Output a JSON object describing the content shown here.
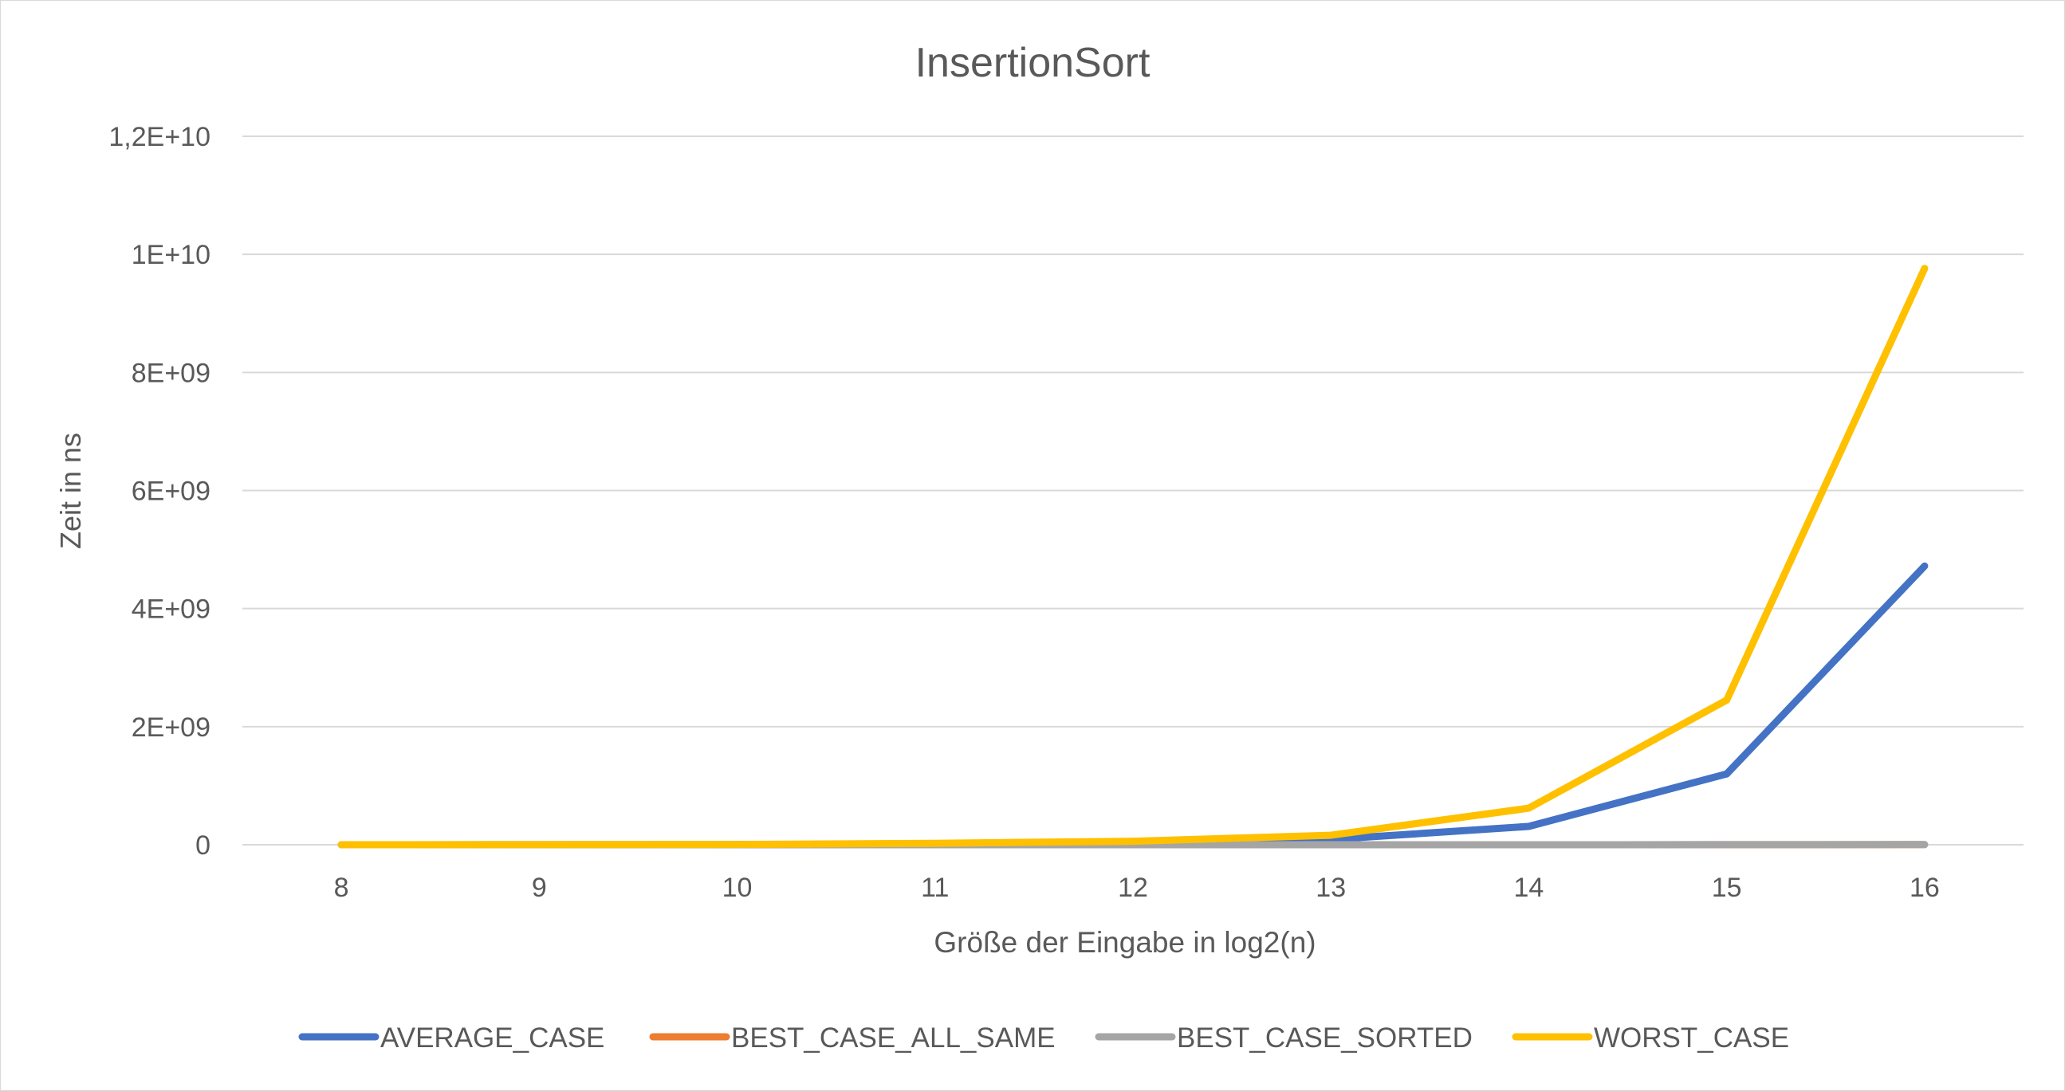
{
  "chart_data": {
    "type": "line",
    "title": "InsertionSort",
    "xlabel": "Größe der Eingabe in log2(n)",
    "ylabel": "Zeit in ns",
    "x": [
      8,
      9,
      10,
      11,
      12,
      13,
      14,
      15,
      16
    ],
    "x_tick_labels": [
      "8",
      "9",
      "10",
      "11",
      "12",
      "13",
      "14",
      "15",
      "16"
    ],
    "ylim": [
      0,
      12000000000
    ],
    "y_ticks": [
      0,
      2000000000,
      4000000000,
      6000000000,
      8000000000,
      10000000000,
      12000000000
    ],
    "y_tick_labels": [
      "0",
      "2E+09",
      "4E+09",
      "6E+09",
      "8E+09",
      "1E+10",
      "1,2E+10"
    ],
    "grid": true,
    "legend_position": "bottom",
    "series": [
      {
        "name": "AVERAGE_CASE",
        "color": "#4472c4",
        "values": [
          200000,
          800000,
          3000000,
          12000000,
          40000000,
          90000000,
          310000000,
          1200000000,
          4720000000
        ]
      },
      {
        "name": "BEST_CASE_ALL_SAME",
        "color": "#ed7d31",
        "values": [
          10000,
          20000,
          40000,
          80000,
          160000,
          320000,
          640000,
          1280000,
          2560000
        ]
      },
      {
        "name": "BEST_CASE_SORTED",
        "color": "#a5a5a5",
        "values": [
          10000,
          20000,
          40000,
          80000,
          160000,
          320000,
          640000,
          1280000,
          2560000
        ]
      },
      {
        "name": "WORST_CASE",
        "color": "#ffc000",
        "values": [
          400000,
          1600000,
          6000000,
          24000000,
          60000000,
          160000000,
          620000000,
          2450000000,
          9760000000
        ]
      }
    ]
  }
}
